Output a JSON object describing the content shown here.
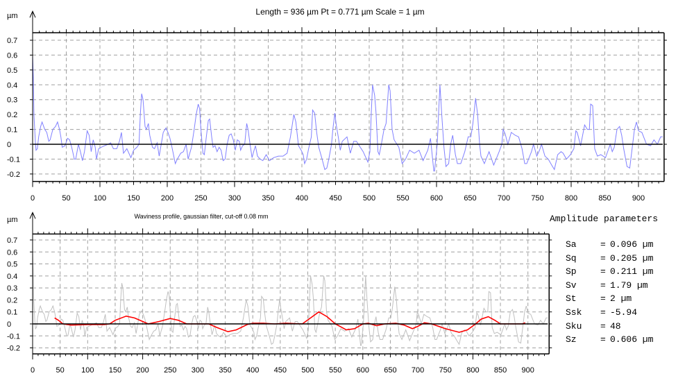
{
  "chart_data": [
    {
      "type": "line",
      "title": "Length = 936 µm  Pt = 0.771 µm  Scale = 1 µm",
      "ylabel": "µm",
      "xlim": [
        0,
        936
      ],
      "ylim": [
        -0.25,
        0.75
      ],
      "xticks": [
        0,
        50,
        100,
        150,
        200,
        250,
        300,
        350,
        400,
        450,
        500,
        550,
        600,
        650,
        700,
        750,
        800,
        850,
        900
      ],
      "yticks": [
        -0.2,
        -0.1,
        0,
        0.1,
        0.2,
        0.3,
        0.4,
        0.5,
        0.6,
        0.7
      ],
      "ytick_labels": [
        "-0.2",
        "-0.1",
        "0",
        "0.1",
        "0.2",
        "0.3",
        "0.4",
        "0.5",
        "0.6",
        "0.7"
      ],
      "grid": true,
      "series": [
        {
          "color": "#8080ff",
          "role": "primary profile",
          "x": [
            0,
            1,
            2,
            4,
            5,
            7,
            9,
            12,
            14,
            18,
            21,
            24,
            26,
            30,
            34,
            37,
            40,
            42,
            44,
            48,
            52,
            55,
            58,
            62,
            64,
            68,
            71,
            74,
            77,
            81,
            84,
            87,
            90,
            93,
            95,
            98,
            102,
            107,
            112,
            116,
            120,
            125,
            129,
            132,
            135,
            140,
            146,
            150,
            155,
            158,
            160,
            162,
            164,
            167,
            169,
            172,
            174,
            178,
            181,
            185,
            188,
            191,
            194,
            198,
            201,
            204,
            207,
            212,
            215,
            220,
            224,
            228,
            231,
            236,
            240,
            243,
            246,
            248,
            250,
            253,
            255,
            258,
            261,
            263,
            266,
            268,
            271,
            274,
            277,
            280,
            283,
            286,
            289,
            292,
            295,
            298,
            301,
            304,
            307,
            309,
            312,
            315,
            318,
            320,
            323,
            326,
            329,
            331,
            334,
            338,
            342,
            347,
            352,
            358,
            365,
            372,
            378,
            383,
            388,
            391,
            395,
            399,
            402,
            404,
            407,
            410,
            414,
            416,
            419,
            422,
            425,
            430,
            434,
            437,
            440,
            444,
            446,
            449,
            451,
            454,
            457,
            460,
            467,
            472,
            477,
            481,
            491,
            498,
            501,
            503,
            505,
            508,
            510,
            513,
            515,
            518,
            522,
            525,
            529,
            531,
            534,
            537,
            544,
            549,
            554,
            560,
            567,
            574,
            580,
            587,
            591,
            596,
            597,
            601,
            603,
            605,
            608,
            611,
            614,
            618,
            621,
            624,
            628,
            631,
            636,
            642,
            647,
            651,
            654,
            658,
            661,
            664,
            666,
            671,
            678,
            685,
            693,
            697,
            699,
            702,
            706,
            711,
            717,
            722,
            727,
            731,
            734,
            741,
            744,
            749,
            753,
            756,
            761,
            766,
            771,
            775,
            780,
            785,
            788,
            793,
            799,
            804,
            807,
            809,
            814,
            820,
            824,
            827,
            829,
            832,
            835,
            839,
            844,
            851,
            858,
            861,
            864,
            868,
            872,
            875,
            878,
            883,
            887,
            890,
            894,
            897,
            900,
            905,
            912,
            918,
            923,
            928,
            933,
            936
          ],
          "y": [
            0.6,
            0.45,
            0.2,
            0.02,
            -0.04,
            -0.03,
            0.05,
            0.12,
            0.15,
            0.1,
            0.08,
            0.02,
            0.03,
            0.1,
            0.12,
            0.15,
            0.1,
            0.05,
            -0.02,
            -0.01,
            0.04,
            0.03,
            -0.02,
            -0.1,
            -0.1,
            0.0,
            -0.05,
            -0.11,
            -0.05,
            0.09,
            0.06,
            -0.05,
            0.03,
            -0.02,
            -0.1,
            -0.03,
            -0.02,
            -0.01,
            0.0,
            0.01,
            -0.03,
            -0.03,
            0.02,
            0.08,
            -0.06,
            -0.03,
            -0.09,
            -0.04,
            -0.02,
            0.0,
            0.2,
            0.34,
            0.3,
            0.12,
            0.1,
            0.14,
            0.06,
            -0.02,
            -0.03,
            0.01,
            -0.08,
            0.0,
            0.08,
            0.11,
            0.08,
            0.04,
            -0.02,
            -0.13,
            -0.1,
            -0.06,
            -0.05,
            0.0,
            -0.1,
            -0.02,
            0.1,
            0.2,
            0.27,
            0.24,
            0.1,
            -0.06,
            -0.07,
            0.05,
            0.16,
            0.17,
            0.05,
            -0.02,
            -0.01,
            -0.05,
            -0.02,
            -0.04,
            -0.11,
            -0.1,
            0.0,
            0.06,
            0.07,
            0.03,
            -0.04,
            0.03,
            0.02,
            -0.04,
            -0.01,
            0.0,
            0.14,
            0.1,
            0.0,
            -0.09,
            -0.04,
            -0.01,
            -0.08,
            -0.1,
            -0.11,
            -0.07,
            -0.11,
            -0.09,
            -0.08,
            -0.08,
            -0.06,
            0.05,
            0.2,
            0.15,
            -0.01,
            -0.04,
            -0.07,
            -0.13,
            -0.1,
            -0.03,
            0.05,
            0.23,
            0.21,
            0.08,
            -0.02,
            -0.1,
            -0.17,
            -0.16,
            -0.1,
            0.0,
            0.1,
            0.21,
            0.13,
            0.05,
            -0.04,
            0.02,
            0.05,
            -0.06,
            0.02,
            0.02,
            -0.05,
            -0.12,
            -0.05,
            0.2,
            0.4,
            0.33,
            0.22,
            -0.05,
            -0.07,
            0.0,
            0.1,
            0.14,
            0.4,
            0.36,
            0.1,
            0.03,
            -0.02,
            -0.13,
            -0.1,
            -0.04,
            -0.06,
            -0.04,
            -0.11,
            -0.04,
            0.04,
            -0.18,
            -0.18,
            0.0,
            0.2,
            0.4,
            0.18,
            -0.02,
            -0.15,
            -0.13,
            0.0,
            0.06,
            -0.07,
            -0.13,
            -0.13,
            -0.05,
            0.05,
            0.05,
            0.14,
            0.31,
            0.2,
            0.0,
            -0.08,
            -0.13,
            -0.05,
            -0.14,
            -0.05,
            0.0,
            0.1,
            0.07,
            0.0,
            0.08,
            0.06,
            0.05,
            -0.03,
            -0.13,
            -0.13,
            -0.05,
            0.0,
            -0.08,
            -0.04,
            0.0,
            -0.08,
            -0.1,
            -0.14,
            -0.17,
            -0.07,
            -0.05,
            -0.06,
            -0.1,
            -0.07,
            -0.03,
            0.09,
            0.08,
            -0.01,
            0.13,
            0.1,
            0.1,
            0.27,
            0.26,
            -0.03,
            -0.08,
            -0.07,
            -0.09,
            0.0,
            -0.05,
            -0.02,
            0.1,
            0.12,
            0.06,
            -0.03,
            -0.15,
            -0.16,
            -0.05,
            0.1,
            0.15,
            0.09,
            0.08,
            0.0,
            -0.01,
            0.03,
            0.0,
            0.05,
            0.05
          ]
        }
      ]
    },
    {
      "type": "line",
      "title": "Waviness profile, gaussian filter, cut-off 0.08 mm",
      "ylabel": "µm",
      "xlim": [
        0,
        936
      ],
      "ylim": [
        -0.25,
        0.75
      ],
      "xticks": [
        0,
        50,
        100,
        150,
        200,
        250,
        300,
        350,
        400,
        450,
        500,
        550,
        600,
        650,
        700,
        750,
        800,
        850,
        900
      ],
      "yticks": [
        -0.2,
        -0.1,
        0,
        0.1,
        0.2,
        0.3,
        0.4,
        0.5,
        0.6,
        0.7
      ],
      "ytick_labels": [
        "-0.2",
        "-0.1",
        "0",
        "0.1",
        "0.2",
        "0.3",
        "0.4",
        "0.5",
        "0.6",
        "0.7"
      ],
      "grid": true,
      "series": [
        {
          "color": "#c0c0c0",
          "role": "primary profile (same as above)"
        },
        {
          "color": "#ff0000",
          "role": "waviness",
          "x": [
            40,
            47,
            55,
            70,
            100,
            130,
            140,
            150,
            170,
            185,
            200,
            210,
            230,
            250,
            265,
            280,
            320,
            335,
            355,
            370,
            390,
            400,
            420,
            440,
            460,
            490,
            505,
            520,
            535,
            550,
            570,
            585,
            600,
            610,
            625,
            640,
            660,
            675,
            690,
            700,
            712,
            725,
            750,
            775,
            790,
            805,
            815,
            828,
            840,
            850,
            890,
            895
          ],
          "y": [
            0.05,
            0.03,
            0.0,
            -0.01,
            -0.005,
            -0.005,
            0.0,
            0.03,
            0.065,
            0.05,
            0.02,
            0.0,
            0.02,
            0.045,
            0.03,
            0.0,
            0.0,
            -0.03,
            -0.065,
            -0.05,
            -0.005,
            0.005,
            0.005,
            0.0,
            0.005,
            0.0,
            0.05,
            0.1,
            0.06,
            0.0,
            -0.05,
            -0.04,
            0.0,
            0.005,
            -0.015,
            0.0,
            0.005,
            -0.01,
            -0.04,
            -0.02,
            0.01,
            0.0,
            -0.04,
            -0.07,
            -0.05,
            0.0,
            0.04,
            0.06,
            0.03,
            0.0,
            0.0,
            0.01
          ]
        }
      ]
    }
  ],
  "amplitude": {
    "title": "Amplitude parameters",
    "rows": [
      {
        "label": "Sa",
        "eq": "=",
        "value": "0.096 µm"
      },
      {
        "label": "Sq",
        "eq": "=",
        "value": "0.205 µm"
      },
      {
        "label": "Sp",
        "eq": "=",
        "value": "0.211 µm"
      },
      {
        "label": "Sv",
        "eq": "=",
        "value": "1.79 µm"
      },
      {
        "label": "St",
        "eq": "=",
        "value": "2 µm"
      },
      {
        "label": "Ssk",
        "eq": "=",
        "value": "-5.94"
      },
      {
        "label": "Sku",
        "eq": "=",
        "value": "48"
      },
      {
        "label": "Sz",
        "eq": "=",
        "value": "0.606 µm"
      }
    ]
  }
}
